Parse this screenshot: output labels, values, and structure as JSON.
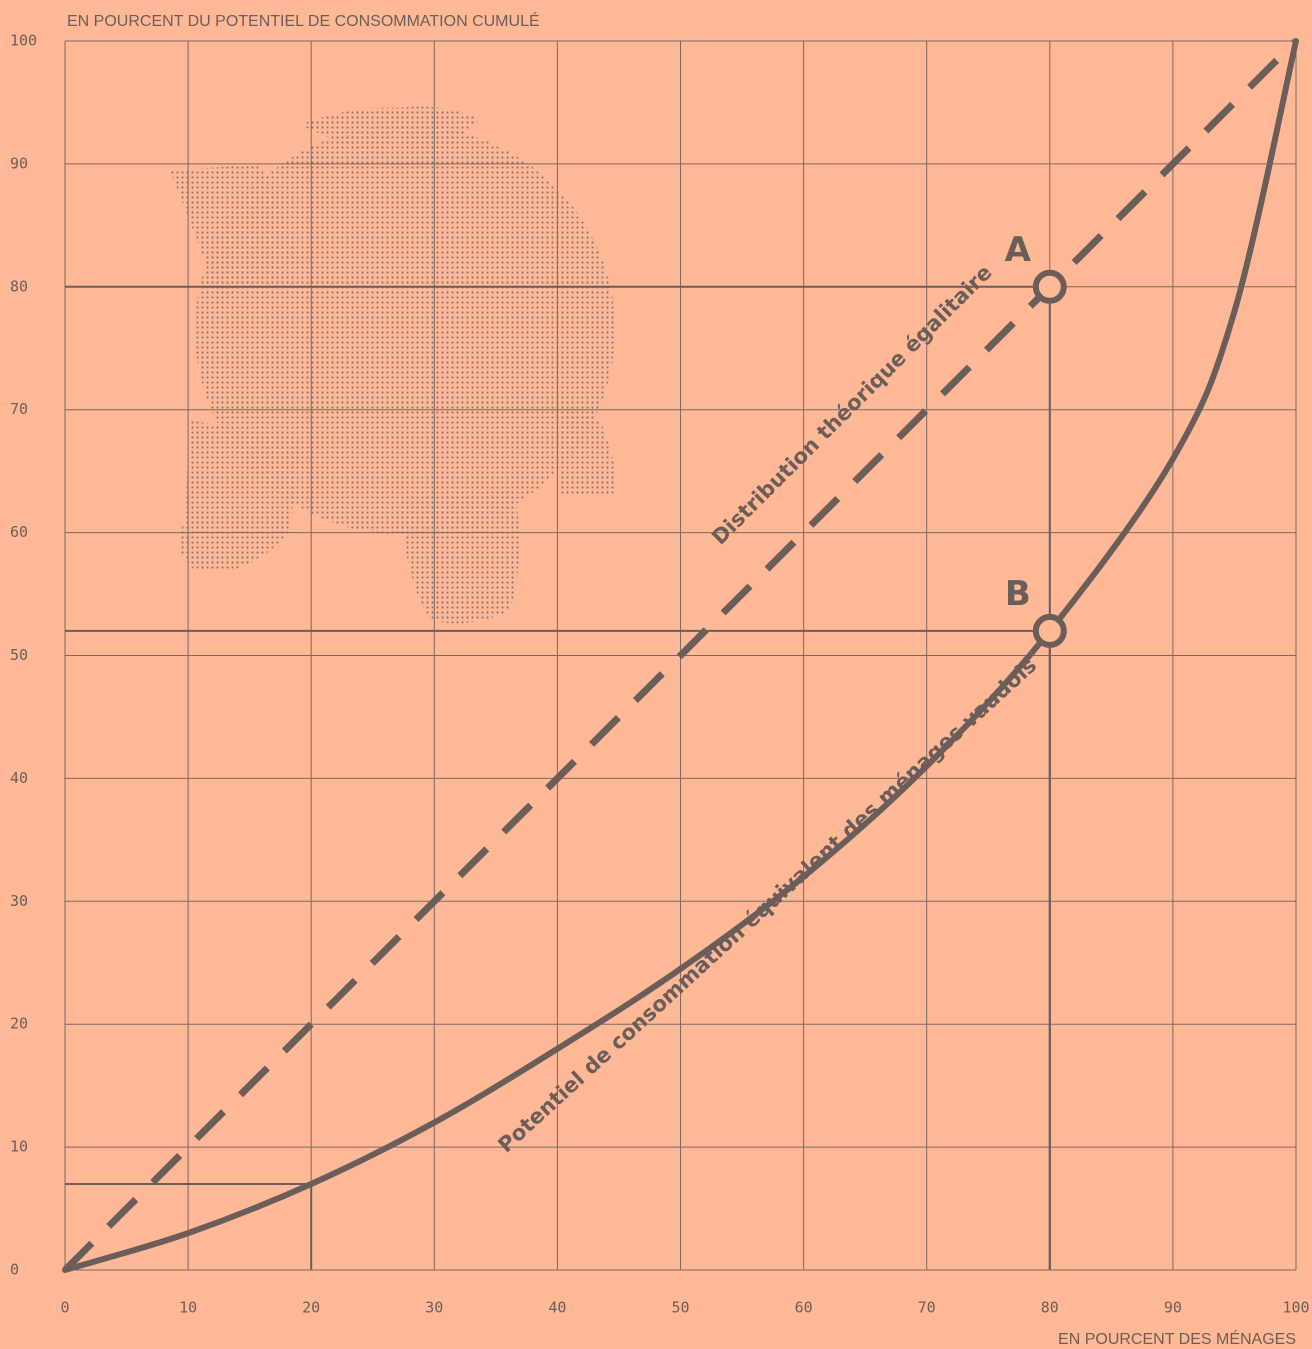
{
  "chart_data": {
    "type": "line",
    "y_axis_title": "EN POURCENT DU POTENTIEL DE  CONSOMMATION CUMULÉ",
    "x_axis_title": "EN POURCENT DES MÉNAGES",
    "xlim": [
      0,
      100
    ],
    "ylim": [
      0,
      100
    ],
    "xticks": [
      0,
      10,
      20,
      30,
      40,
      50,
      60,
      70,
      80,
      90,
      100
    ],
    "yticks": [
      0,
      10,
      20,
      30,
      40,
      50,
      60,
      70,
      80,
      90,
      100
    ],
    "grid": true,
    "x": [
      0,
      10,
      20,
      30,
      40,
      50,
      60,
      70,
      80,
      90,
      95,
      100
    ],
    "series": [
      {
        "name": "Distribution théorique égalitaire",
        "color": "#6b5e5a",
        "style": "dashed",
        "values": [
          0,
          10,
          20,
          30,
          40,
          50,
          60,
          70,
          80,
          90,
          95,
          100
        ]
      },
      {
        "name": "Potentiel de consommation équivalent des ménages vaudois",
        "color": "#6b5e5a",
        "style": "solid",
        "values": [
          0,
          3,
          7,
          12,
          18,
          24.5,
          32,
          41,
          52,
          66,
          78,
          100
        ]
      }
    ],
    "annotations": [
      {
        "label": "A",
        "x": 80,
        "y": 80
      },
      {
        "label": "B",
        "x": 80,
        "y": 52
      }
    ],
    "guides": [
      {
        "x": 20,
        "y": 7
      }
    ]
  }
}
